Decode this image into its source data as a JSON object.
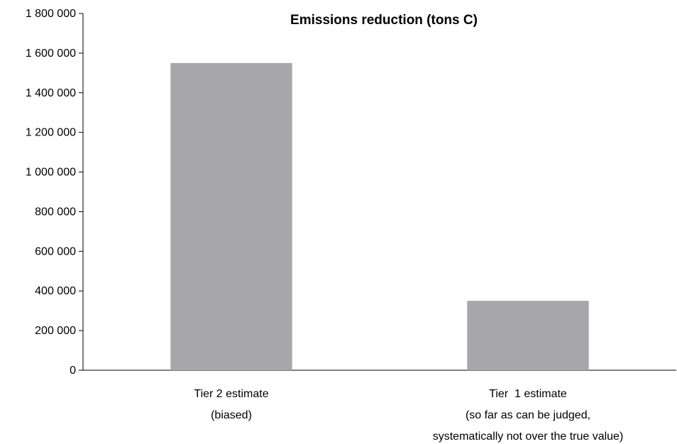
{
  "chart_data": {
    "type": "bar",
    "title": "Emissions reduction (tons C)",
    "xlabel": "",
    "ylabel": "",
    "ylim": [
      0,
      1800000
    ],
    "yticks": [
      0,
      200000,
      400000,
      600000,
      800000,
      1000000,
      1200000,
      1400000,
      1600000,
      1800000
    ],
    "ytick_labels": [
      "0",
      "200 000",
      "400 000",
      "600 000",
      "800 000",
      "1 000 000",
      "1 200 000",
      "1 400 000",
      "1 600 000",
      "1 800 000"
    ],
    "categories": [
      "Tier 2 estimate (biased)",
      "Tier 1 estimate (so far as can be judged, systematically not over the true value)"
    ],
    "category_label_lines": [
      [
        "Tier 2 estimate",
        "(biased)"
      ],
      [
        "Tier  1 estimate",
        "(so far as can be judged,",
        "systematically not over the true value)"
      ]
    ],
    "values": [
      1550000,
      350000
    ],
    "bar_color": "#a7a7a9",
    "axis_color": "#000000",
    "grid": false,
    "legend": "none"
  }
}
